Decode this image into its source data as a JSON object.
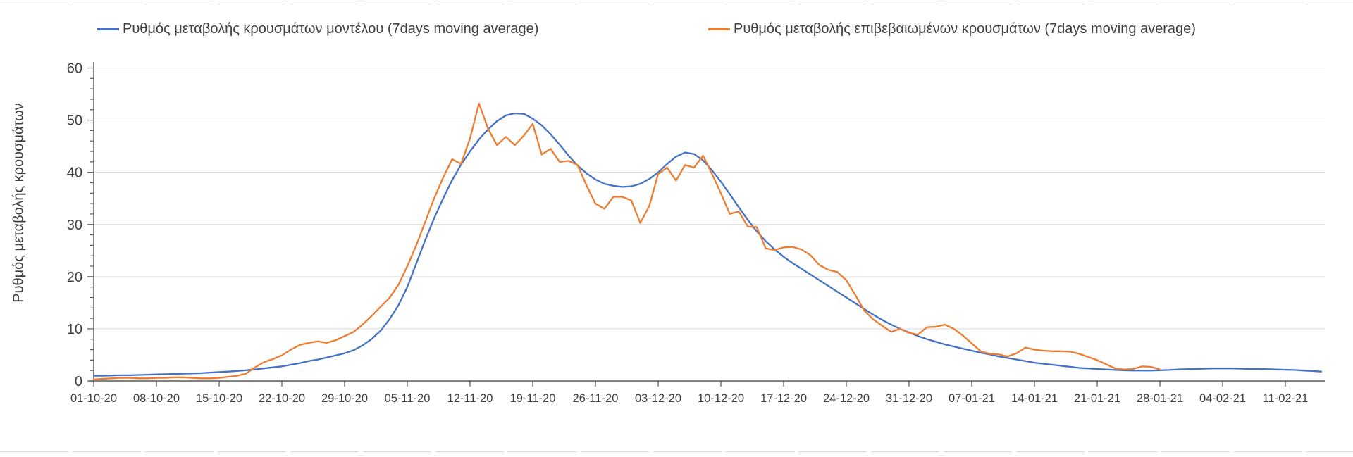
{
  "style": {
    "background": "#ffffff",
    "axis_color": "#595959",
    "gridline_color": "#d9d9d9",
    "tick_label_color": "#404040",
    "legend_text_color": "#404040",
    "spreadsheet_line_color": "#d9d9d9"
  },
  "chart_data": {
    "type": "line",
    "title": "",
    "xlabel": "",
    "ylabel": "Ρυθμός μεταβολής κρουσμάτων",
    "ylim": [
      0,
      60
    ],
    "y_major_ticks": [
      0,
      10,
      20,
      30,
      40,
      50,
      60
    ],
    "y_minor_tick_step": 2,
    "grid": "horizontal",
    "legend_position": "top",
    "x_tick_labels": [
      "01-10-20",
      "08-10-20",
      "15-10-20",
      "22-10-20",
      "29-10-20",
      "05-11-20",
      "12-11-20",
      "19-11-20",
      "26-11-20",
      "03-12-20",
      "10-12-20",
      "17-12-20",
      "24-12-20",
      "31-12-20",
      "07-01-21",
      "14-01-21",
      "21-01-21",
      "28-01-21",
      "04-02-21",
      "11-02-21"
    ],
    "x_tick_interval_days": 7,
    "x_sample_interval_days": 1,
    "x_start_label": "01-10-20",
    "series": [
      {
        "name": "Ρυθμός μεταβολής κρουσμάτων μοντέλου (7days moving average)",
        "color": "#4472c4",
        "start_day": 0,
        "values": [
          1.0,
          1.0,
          1.05,
          1.1,
          1.1,
          1.15,
          1.2,
          1.25,
          1.3,
          1.35,
          1.4,
          1.45,
          1.5,
          1.6,
          1.7,
          1.8,
          1.9,
          2.05,
          2.2,
          2.4,
          2.6,
          2.8,
          3.1,
          3.4,
          3.8,
          4.1,
          4.5,
          4.9,
          5.3,
          5.9,
          6.8,
          8.0,
          9.6,
          11.8,
          14.5,
          18.0,
          22.5,
          27.0,
          31.2,
          35.0,
          38.5,
          41.5,
          44.0,
          46.3,
          48.2,
          49.8,
          50.9,
          51.3,
          51.2,
          50.3,
          49.0,
          47.3,
          45.3,
          43.2,
          41.3,
          39.8,
          38.6,
          37.8,
          37.4,
          37.2,
          37.3,
          37.8,
          38.7,
          40.0,
          41.6,
          43.0,
          43.8,
          43.5,
          42.3,
          40.4,
          38.2,
          35.8,
          33.3,
          30.9,
          28.7,
          26.8,
          25.2,
          23.8,
          22.6,
          21.5,
          20.4,
          19.3,
          18.2,
          17.1,
          16.0,
          14.9,
          13.8,
          12.7,
          11.7,
          10.8,
          10.0,
          9.3,
          8.6,
          8.0,
          7.5,
          7.0,
          6.6,
          6.2,
          5.8,
          5.4,
          5.1,
          4.7,
          4.4,
          4.1,
          3.8,
          3.5,
          3.3,
          3.1,
          2.9,
          2.7,
          2.5,
          2.4,
          2.3,
          2.2,
          2.1,
          2.05,
          2.0,
          2.0,
          2.0,
          2.05,
          2.1,
          2.2,
          2.25,
          2.3,
          2.35,
          2.4,
          2.4,
          2.4,
          2.35,
          2.3,
          2.3,
          2.25,
          2.2,
          2.15,
          2.1,
          2.0,
          1.9,
          1.8
        ]
      },
      {
        "name": "Ρυθμός μεταβολής επιβεβαιωμένων κρουσμάτων (7days moving average)",
        "color": "#ed7d31",
        "start_day": 0,
        "values": [
          0.3,
          0.4,
          0.5,
          0.6,
          0.6,
          0.5,
          0.5,
          0.6,
          0.6,
          0.7,
          0.7,
          0.6,
          0.5,
          0.5,
          0.6,
          0.8,
          1.0,
          1.4,
          2.6,
          3.6,
          4.2,
          4.9,
          6.0,
          6.9,
          7.3,
          7.6,
          7.3,
          7.8,
          8.6,
          9.4,
          10.8,
          12.4,
          14.2,
          15.9,
          18.4,
          22.0,
          26.0,
          30.5,
          35.0,
          39.0,
          42.5,
          41.6,
          46.5,
          53.2,
          48.4,
          45.2,
          46.8,
          45.2,
          47.0,
          49.3,
          43.4,
          44.5,
          42.0,
          42.2,
          41.4,
          37.5,
          34.0,
          33.0,
          35.3,
          35.3,
          34.6,
          30.3,
          33.5,
          39.7,
          40.9,
          38.4,
          41.4,
          40.9,
          43.2,
          39.7,
          36.0,
          32.0,
          32.5,
          29.6,
          29.5,
          25.4,
          25.1,
          25.6,
          25.7,
          25.2,
          24.1,
          22.2,
          21.3,
          20.9,
          19.3,
          16.5,
          13.5,
          11.8,
          10.6,
          9.4,
          10.0,
          9.2,
          8.9,
          10.3,
          10.4,
          10.8,
          10.0,
          8.7,
          7.2,
          5.7,
          5.2,
          5.1,
          4.7,
          5.3,
          6.4,
          6.0,
          5.8,
          5.7,
          5.7,
          5.6,
          5.2,
          4.6,
          4.0,
          3.2,
          2.4,
          2.2,
          2.3,
          2.8,
          2.7,
          2.2
        ]
      }
    ]
  }
}
